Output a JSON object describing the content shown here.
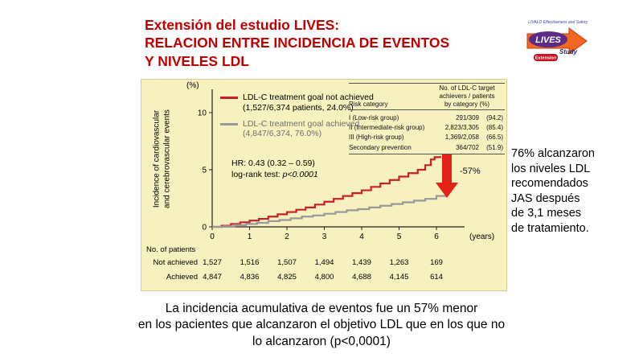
{
  "slide": {
    "title_lines": [
      "Extensión del estudio LIVES:",
      "RELACION ENTRE INCIDENCIA DE EVENTOS",
      "Y NIVELES LDL"
    ],
    "side_note": "76% alcanzaron\nlos niveles LDL\nrecomendados\nJAS después\nde 3,1 meses\nde tratamiento.",
    "caption": "La incidencia acumulativa de eventos fue un 57% menor\nen los pacientes que alcanzaron el objetivo LDL que en los que no\nlo alcanzaron (p<0,0001)"
  },
  "logo": {
    "top_text": "LIVALO Effectiveness and Safety",
    "name": "LIVES",
    "study": "Study",
    "badge": "Extension"
  },
  "chart_data": {
    "type": "line",
    "title": "",
    "ylabel": "Incidence of cardiovascular\nand cerebrovascular events",
    "y_unit": "(%)",
    "xlabel": "(years)",
    "xlim": [
      0,
      6.5
    ],
    "ylim": [
      0,
      12
    ],
    "yticks": [
      0,
      5,
      10
    ],
    "xticks": [
      0,
      1,
      2,
      3,
      4,
      5,
      6
    ],
    "legend": [
      {
        "label": "LDL-C treatment goal not achieved",
        "detail": "(1,527/6,374 patients, 24.0%)",
        "color": "#c8202a"
      },
      {
        "label": "LDL-C treatment goal achieved",
        "detail": "(4,847/6,374, 76.0%)",
        "color": "#999999"
      }
    ],
    "hr_text": "HR: 0.43 (0.32 – 0.59)",
    "logrank_prefix": "log-rank test: ",
    "logrank_p": "p<0.0001",
    "reduction_label": "-57%",
    "series": [
      {
        "id": "not-achieved",
        "name": "LDL-C treatment goal not achieved",
        "color": "#c8202a",
        "x": [
          0,
          0.25,
          0.5,
          0.75,
          1.0,
          1.25,
          1.5,
          1.75,
          2.0,
          2.25,
          2.5,
          2.75,
          3.0,
          3.25,
          3.5,
          3.75,
          4.0,
          4.25,
          4.5,
          4.75,
          5.0,
          5.25,
          5.5,
          5.7,
          5.85,
          5.95,
          6.1
        ],
        "y": [
          0,
          0.1,
          0.25,
          0.4,
          0.55,
          0.7,
          0.9,
          1.1,
          1.3,
          1.5,
          1.7,
          1.95,
          2.2,
          2.45,
          2.7,
          2.95,
          3.2,
          3.5,
          3.8,
          4.1,
          4.4,
          4.7,
          5.0,
          5.4,
          5.9,
          6.1,
          6.2
        ]
      },
      {
        "id": "achieved",
        "name": "LDL-C treatment goal achieved",
        "color": "#999999",
        "x": [
          0,
          0.3,
          0.6,
          0.9,
          1.2,
          1.5,
          1.8,
          2.1,
          2.4,
          2.7,
          3.0,
          3.3,
          3.6,
          3.9,
          4.2,
          4.5,
          4.8,
          5.1,
          5.4,
          5.7,
          6.0,
          6.25
        ],
        "y": [
          0,
          0.05,
          0.15,
          0.25,
          0.35,
          0.5,
          0.6,
          0.75,
          0.9,
          1.0,
          1.15,
          1.3,
          1.45,
          1.55,
          1.7,
          1.85,
          2.0,
          2.15,
          2.3,
          2.45,
          2.7,
          3.0
        ]
      }
    ],
    "risk_table": {
      "col1_header": "Risk category",
      "col2_header": "No. of LDL-C target\nachievers / patients\nby category (%)",
      "rows": [
        {
          "category": "I (Low-risk group)",
          "value": "291/309",
          "pct": "(94.2)"
        },
        {
          "category": "II (Intermediate-risk group)",
          "value": "2,823/3,305",
          "pct": "(85.4)"
        },
        {
          "category": "III (High-risk group)",
          "value": "1,369/2,058",
          "pct": "(66.5)"
        },
        {
          "category": "Secondary prevention",
          "value": "364/702",
          "pct": "(51.9)"
        }
      ]
    },
    "patients_table": {
      "title": "No. of patients",
      "rows": [
        {
          "label": "Not achieved",
          "values": [
            "1,527",
            "1,516",
            "1,507",
            "1,494",
            "1,439",
            "1,263",
            "169"
          ]
        },
        {
          "label": "Achieved",
          "values": [
            "4,847",
            "4,836",
            "4,825",
            "4,800",
            "4,688",
            "4,145",
            "614"
          ]
        }
      ]
    }
  }
}
